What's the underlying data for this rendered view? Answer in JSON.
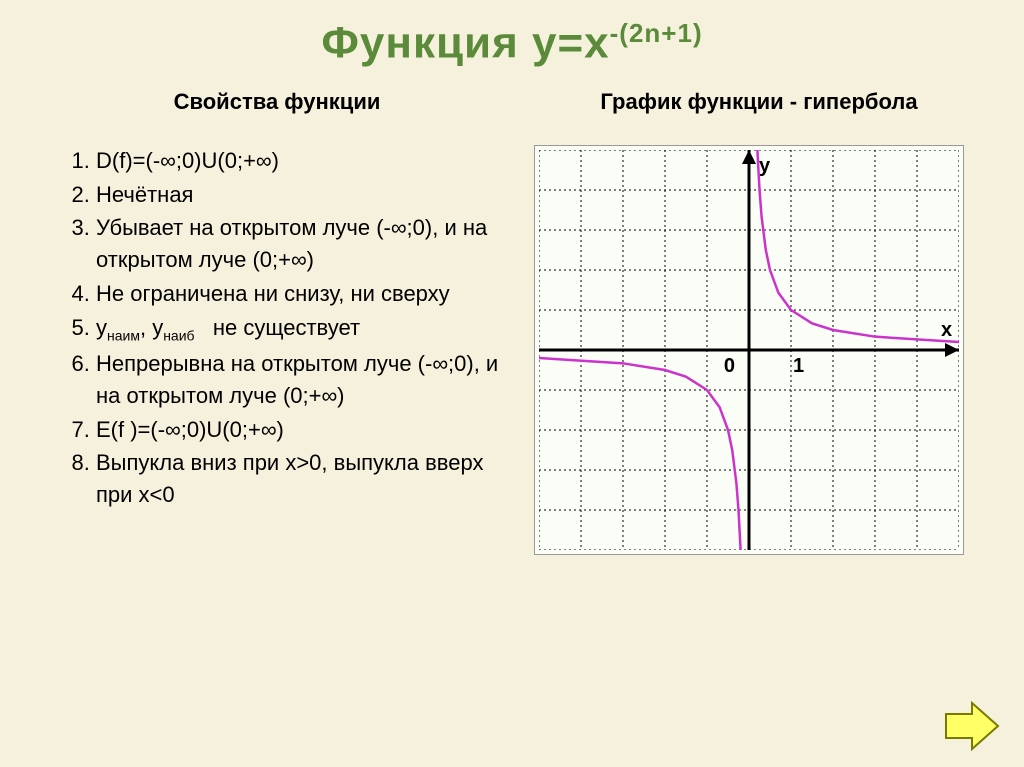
{
  "title_prefix": "Функция  у=х",
  "title_exponent": "-(2n+1)",
  "left_heading": "Свойства функции",
  "right_heading": "График функции - гипербола",
  "properties": [
    "D(f)=(-∞;0)U(0;+∞)",
    "Нечётная",
    "Убывает на открытом луче (-∞;0), и на открытом луче (0;+∞)",
    "Не ограничена ни снизу, ни сверху",
    "унаим, унаиб   не существует",
    "Непрерывна на открытом луче (-∞;0), и на открытом луче (0;+∞)",
    "E(f )=(-∞;0)U(0;+∞)",
    "Выпукла вниз при х>0, выпукла вверх при х<0"
  ],
  "chart": {
    "type": "line",
    "background_color": "#fbfdf7",
    "grid_color": "#000000",
    "grid_style": "dashed",
    "axis_color": "#000000",
    "curve_color": "#cc33cc",
    "curve_width": 2.5,
    "xlim": [
      -5,
      5
    ],
    "ylim": [
      -5,
      5
    ],
    "grid_step": 1,
    "x_label": "х",
    "y_label": "у",
    "origin_label": "0",
    "tick_label": "1",
    "axis_label_fontweight": "bold",
    "axis_label_fontsize": 20,
    "curve_pos_x": [
      0.16,
      0.18,
      0.2,
      0.25,
      0.3,
      0.4,
      0.5,
      0.7,
      1,
      1.5,
      2,
      3,
      5
    ],
    "curve_pos_y": [
      6.25,
      5.56,
      5,
      4,
      3.33,
      2.5,
      2,
      1.43,
      1,
      0.667,
      0.5,
      0.333,
      0.2
    ],
    "curve_neg_x": [
      -5,
      -3,
      -2,
      -1.5,
      -1,
      -0.7,
      -0.5,
      -0.4,
      -0.3,
      -0.25,
      -0.2,
      -0.18,
      -0.16
    ],
    "curve_neg_y": [
      -0.2,
      -0.333,
      -0.5,
      -0.667,
      -1,
      -1.43,
      -2,
      -2.5,
      -3.33,
      -4,
      -5,
      -5.56,
      -6.25
    ]
  },
  "nav": {
    "fill": "#ffff66",
    "stroke": "#7a7a00"
  }
}
